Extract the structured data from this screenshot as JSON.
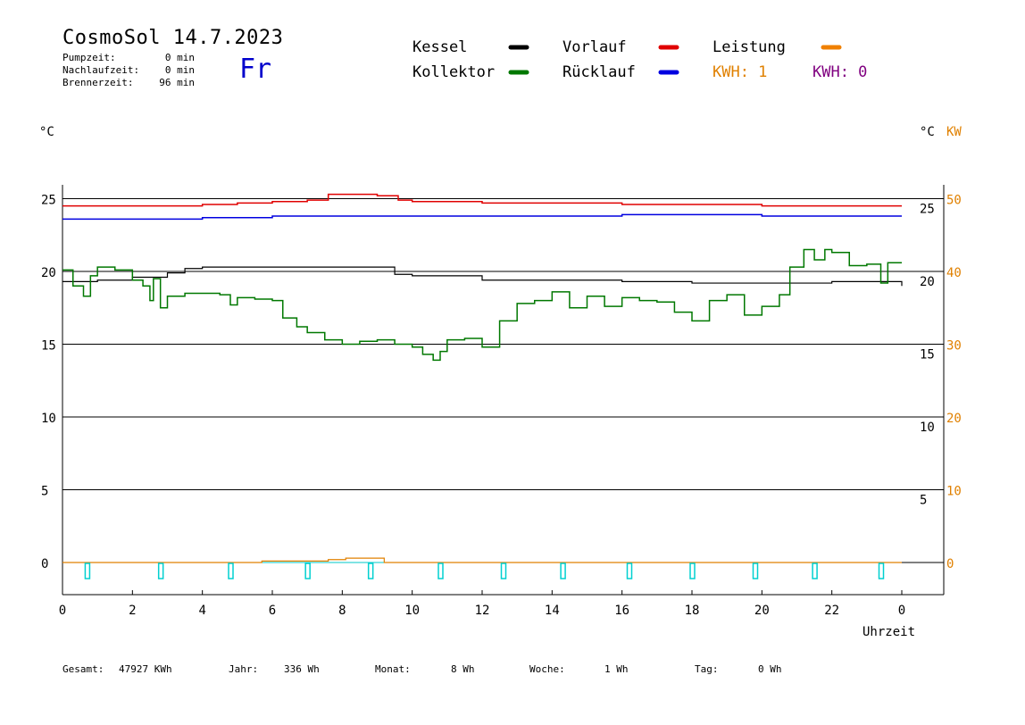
{
  "header": {
    "title": "CosmoSol 14.7.2023",
    "day": "Fr",
    "stats": [
      {
        "label": "Pumpzeit:",
        "value": "0 min"
      },
      {
        "label": "Nachlaufzeit:",
        "value": "0 min"
      },
      {
        "label": "Brennerzeit:",
        "value": "96 min"
      }
    ]
  },
  "legend": {
    "kessel": {
      "label": "Kessel",
      "color": "#000000"
    },
    "vorlauf": {
      "label": "Vorlauf",
      "color": "#e00000"
    },
    "leistung": {
      "label": "Leistung",
      "color": "#f08000"
    },
    "kollektor": {
      "label": "Kollektor",
      "color": "#007800"
    },
    "ruecklauf": {
      "label": "Rücklauf",
      "color": "#0000e0"
    },
    "kwh1": {
      "label": "KWH: 1",
      "color": "#e08000"
    },
    "kwh2": {
      "label": "KWH: 0",
      "color": "#800080"
    }
  },
  "axis_units": {
    "left": "°C",
    "right_c": "°C",
    "right_kw": "KW"
  },
  "footer": [
    {
      "label": "Gesamt:",
      "value": "47927 KWh"
    },
    {
      "label": "Jahr:",
      "value": "336 Wh"
    },
    {
      "label": "Monat:",
      "value": "8 Wh"
    },
    {
      "label": "Woche:",
      "value": "1 Wh"
    },
    {
      "label": "Tag:",
      "value": "0 Wh"
    }
  ],
  "chart_data": {
    "type": "line",
    "xlabel": "Uhrzeit",
    "x_ticks": [
      "0",
      "2",
      "4",
      "6",
      "8",
      "10",
      "12",
      "14",
      "16",
      "18",
      "20",
      "22",
      "0"
    ],
    "xlim": [
      0,
      24
    ],
    "y_left": {
      "ticks": [
        "0",
        "5",
        "10",
        "15",
        "20",
        "25"
      ],
      "lim": [
        -2,
        26
      ]
    },
    "y_right_c": {
      "ticks": [
        "5",
        "10",
        "15",
        "20",
        "25"
      ]
    },
    "y_right_kw": {
      "ticks": [
        "0",
        "10",
        "20",
        "30",
        "40",
        "50"
      ],
      "color": "#e08000"
    },
    "grid": true,
    "series": [
      {
        "name": "Vorlauf",
        "color": "#e00000",
        "x": [
          0,
          1,
          2,
          3,
          4,
          5,
          6,
          7,
          7.6,
          8,
          9,
          9.6,
          10,
          12,
          14,
          16,
          18,
          20,
          22,
          24
        ],
        "y": [
          24.5,
          24.5,
          24.5,
          24.5,
          24.6,
          24.7,
          24.8,
          24.9,
          25.3,
          25.3,
          25.2,
          24.9,
          24.8,
          24.7,
          24.7,
          24.6,
          24.6,
          24.5,
          24.5,
          24.5
        ]
      },
      {
        "name": "Rücklauf",
        "color": "#0000e0",
        "x": [
          0,
          2,
          4,
          6,
          8,
          10,
          12,
          14,
          16,
          18,
          20,
          22,
          24
        ],
        "y": [
          23.6,
          23.6,
          23.7,
          23.8,
          23.8,
          23.8,
          23.8,
          23.8,
          23.9,
          23.9,
          23.8,
          23.8,
          23.8
        ]
      },
      {
        "name": "Kessel",
        "color": "#000000",
        "x": [
          0,
          1,
          2,
          3,
          3.5,
          4,
          6,
          8,
          9.2,
          9.5,
          10,
          11,
          12,
          14,
          16,
          18,
          20,
          22,
          23.4,
          24
        ],
        "y": [
          19.3,
          19.4,
          19.6,
          19.9,
          20.2,
          20.3,
          20.3,
          20.3,
          20.3,
          19.8,
          19.7,
          19.7,
          19.4,
          19.4,
          19.3,
          19.2,
          19.2,
          19.3,
          19.3,
          19.0
        ]
      },
      {
        "name": "Kollektor",
        "color": "#007800",
        "x": [
          0,
          0.3,
          0.6,
          0.8,
          1,
          1.5,
          2,
          2.3,
          2.5,
          2.6,
          2.8,
          3,
          3.5,
          4,
          4.5,
          4.8,
          5,
          5.5,
          6,
          6.3,
          6.7,
          7,
          7.5,
          8,
          8.5,
          9,
          9.5,
          10,
          10.3,
          10.6,
          10.8,
          11,
          11.5,
          12,
          12.5,
          13,
          13.5,
          14,
          14.5,
          15,
          15.5,
          16,
          16.5,
          17,
          17.5,
          18,
          18.5,
          19,
          19.5,
          20,
          20.5,
          20.8,
          21.2,
          21.5,
          21.8,
          22,
          22.5,
          23,
          23.4,
          23.6,
          24
        ],
        "y": [
          20.1,
          19.0,
          18.3,
          19.7,
          20.3,
          20.1,
          19.4,
          19.0,
          18.0,
          19.5,
          17.5,
          18.3,
          18.5,
          18.5,
          18.4,
          17.7,
          18.2,
          18.1,
          18.0,
          16.8,
          16.2,
          15.8,
          15.3,
          15.0,
          15.2,
          15.3,
          15.0,
          14.8,
          14.3,
          13.9,
          14.5,
          15.3,
          15.4,
          14.8,
          16.6,
          17.8,
          18.0,
          18.6,
          17.5,
          18.3,
          17.6,
          18.2,
          18.0,
          17.9,
          17.2,
          16.6,
          18.0,
          18.4,
          17.0,
          17.6,
          18.4,
          20.3,
          21.5,
          20.8,
          21.5,
          21.3,
          20.4,
          20.5,
          19.2,
          20.6,
          20.6
        ]
      },
      {
        "name": "Leistung",
        "color": "#e08000",
        "x": [
          0,
          5.6,
          5.7,
          7.5,
          7.6,
          8.0,
          8.1,
          9.1,
          9.2,
          24
        ],
        "y": [
          0,
          0,
          0.1,
          0.1,
          0.2,
          0.2,
          0.3,
          0.3,
          0,
          0
        ]
      }
    ],
    "pump_markers_hours": [
      0.7,
      2.8,
      4.8,
      7.0,
      8.8,
      10.8,
      12.6,
      14.3,
      16.2,
      18.0,
      19.8,
      21.5,
      23.4
    ]
  }
}
